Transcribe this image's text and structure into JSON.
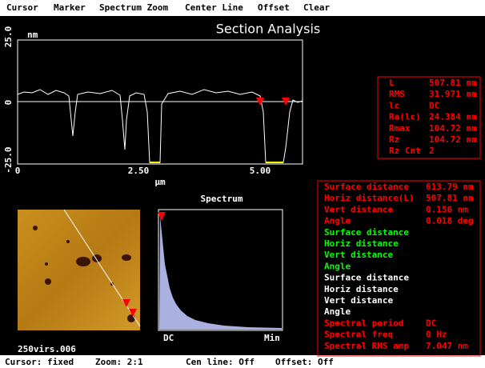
{
  "menu": [
    "Cursor",
    "Marker",
    "Spectrum Zoom",
    "Center Line",
    "Offset",
    "Clear"
  ],
  "section": {
    "title": "Section Analysis",
    "y_top": "25.0",
    "y_unit": "nm",
    "y_mid": "0",
    "y_bottom": "-25.0",
    "x_labels": [
      "0",
      "2.50",
      "5.00"
    ],
    "x_unit": "μm"
  },
  "stats": [
    [
      "L",
      "507.81 nm"
    ],
    [
      "RMS",
      "31.971 nm"
    ],
    [
      "lc",
      "DC"
    ],
    [
      "Ra(lc)",
      "24.384 nm"
    ],
    [
      "Rmax",
      "104.72 nm"
    ],
    [
      "Rz",
      "104.72 nm"
    ],
    [
      "Rz Cnt",
      "2"
    ]
  ],
  "image": {
    "filename": "250virs.006"
  },
  "spectrum": {
    "title": "Spectrum",
    "left": "DC",
    "right": "Min"
  },
  "measurements": {
    "red": [
      [
        "Surface distance",
        "613.79 nm"
      ],
      [
        "Horiz distance(L)",
        "507.81 nm"
      ],
      [
        "Vert distance",
        "0.156 nm"
      ],
      [
        "Angle",
        "0.018 deg"
      ]
    ],
    "green": [
      [
        "Surface distance"
      ],
      [
        "Horiz distance"
      ],
      [
        "Vert distance"
      ],
      [
        "Angle"
      ]
    ],
    "white": [
      [
        "Surface distance"
      ],
      [
        "Horiz distance"
      ],
      [
        "Vert distance"
      ],
      [
        "Angle"
      ]
    ],
    "spectral": [
      [
        "Spectral period",
        "DC"
      ],
      [
        "Spectral freq",
        "0 Hz"
      ],
      [
        "Spectral RMS amp",
        "7.047 nm"
      ]
    ]
  },
  "status": [
    "Cursor: fixed",
    "Zoom: 2:1",
    "Cen line: Off",
    "Offset: Off"
  ]
}
